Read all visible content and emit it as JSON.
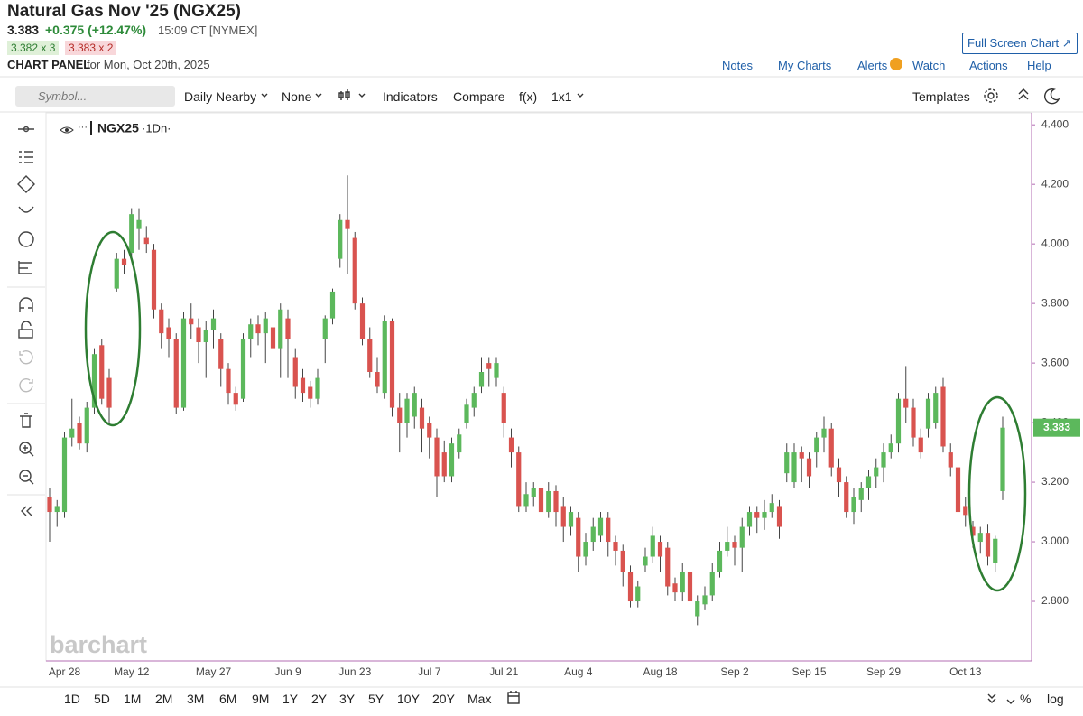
{
  "header": {
    "title": "Natural Gas Nov '25 (NGX25)",
    "last": "3.383",
    "change": "+0.375 (+12.47%)",
    "time": "15:09 CT [NYMEX]",
    "bid": "3.382 x 3",
    "ask": "3.383 x 2",
    "panel": "CHART PANEL",
    "date": "for Mon, Oct 20th, 2025",
    "fullscreen": "Full Screen Chart",
    "links": [
      "Notes",
      "My Charts",
      "Alerts",
      "Watch",
      "Actions",
      "Help"
    ]
  },
  "toolbar": {
    "search": "Symbol...",
    "items": [
      "Daily Nearby",
      "None",
      "Indicators",
      "Compare",
      "f(x)",
      "1x1"
    ],
    "templates": "Templates"
  },
  "legend": {
    "symbol": "NGX25",
    "period": "·1Dn·"
  },
  "watermark": "barchart",
  "periods": [
    "1D",
    "5D",
    "1M",
    "2M",
    "3M",
    "6M",
    "9M",
    "1Y",
    "2Y",
    "3Y",
    "5Y",
    "10Y",
    "20Y",
    "Max"
  ],
  "scale_buttons": [
    "%",
    "log"
  ],
  "chart_data": {
    "type": "candlestick",
    "up_color": "#5cb85c",
    "down_color": "#d9534f",
    "ylim": [
      2.6,
      4.44
    ],
    "yticks": [
      {
        "value": 2.8,
        "label": "2.800"
      },
      {
        "value": 3.0,
        "label": "3.000"
      },
      {
        "value": 3.2,
        "label": "3.200"
      },
      {
        "value": 3.4,
        "label": "3.400"
      },
      {
        "value": 3.6,
        "label": "3.600"
      },
      {
        "value": 3.8,
        "label": "3.800"
      },
      {
        "value": 4.0,
        "label": "4.000"
      },
      {
        "value": 4.2,
        "label": "4.200"
      },
      {
        "value": 4.4,
        "label": "4.400"
      }
    ],
    "categories": [
      null,
      null,
      "Apr 28",
      null,
      null,
      null,
      null,
      null,
      null,
      null,
      null,
      "May 12",
      null,
      null,
      null,
      null,
      null,
      null,
      null,
      null,
      null,
      null,
      "May 27",
      null,
      null,
      null,
      null,
      null,
      null,
      null,
      null,
      null,
      "Jun 9",
      null,
      null,
      null,
      null,
      null,
      null,
      null,
      null,
      "Jun 23",
      null,
      null,
      null,
      null,
      null,
      null,
      null,
      null,
      null,
      "Jul 7",
      null,
      null,
      null,
      null,
      null,
      null,
      null,
      null,
      null,
      "Jul 21",
      null,
      null,
      null,
      null,
      null,
      null,
      null,
      null,
      null,
      "Aug 4",
      null,
      null,
      null,
      null,
      null,
      null,
      null,
      null,
      null,
      null,
      "Aug 18",
      null,
      null,
      null,
      null,
      null,
      null,
      null,
      null,
      null,
      "Sep 2",
      null,
      null,
      null,
      null,
      null,
      null,
      null,
      null,
      null,
      "Sep 15",
      null,
      null,
      null,
      null,
      null,
      null,
      null,
      null,
      null,
      "Sep 29",
      null,
      null,
      null,
      null,
      null,
      null,
      null,
      null,
      null,
      null,
      "Oct 13",
      null,
      null,
      null,
      null,
      null
    ],
    "open": [
      3.15,
      3.1,
      3.1,
      3.35,
      3.4,
      3.33,
      3.45,
      3.66,
      3.55,
      3.85,
      3.95,
      3.97,
      4.05,
      4.02,
      3.98,
      3.78,
      3.72,
      3.68,
      3.45,
      3.75,
      3.72,
      3.67,
      3.71,
      3.68,
      3.58,
      3.5,
      3.48,
      3.68,
      3.73,
      3.7,
      3.72,
      3.65,
      3.75,
      3.62,
      3.55,
      3.52,
      3.48,
      3.68,
      3.75,
      3.95,
      4.08,
      4.02,
      3.8,
      3.68,
      3.57,
      3.5,
      3.74,
      3.45,
      3.4,
      3.42,
      3.45,
      3.4,
      3.35,
      3.3,
      3.22,
      3.3,
      3.4,
      3.45,
      3.52,
      3.6,
      3.55,
      3.5,
      3.35,
      3.3,
      3.12,
      3.15,
      3.18,
      3.1,
      3.17,
      3.12,
      3.05,
      3.08,
      2.95,
      3.0,
      3.02,
      3.08,
      3.0,
      2.97,
      2.9,
      2.8,
      2.92,
      2.95,
      3.0,
      2.98,
      2.86,
      2.83,
      2.9,
      2.75,
      2.79,
      2.82,
      2.9,
      2.97,
      3.0,
      2.98,
      3.05,
      3.1,
      3.08,
      3.1,
      3.12,
      3.23,
      3.2,
      3.3,
      3.28,
      3.3,
      3.35,
      3.38,
      3.25,
      3.2,
      3.1,
      3.14,
      3.18,
      3.22,
      3.25,
      3.3,
      3.33,
      3.48,
      3.45,
      3.35,
      3.38,
      3.4,
      3.52,
      3.3,
      3.25,
      3.12,
      3.05,
      3.0,
      3.03,
      2.93,
      3.17
    ],
    "high": [
      3.18,
      3.14,
      3.37,
      3.48,
      3.42,
      3.47,
      3.65,
      3.68,
      3.58,
      3.97,
      3.98,
      4.12,
      4.12,
      4.06,
      4.0,
      3.8,
      3.75,
      3.7,
      3.77,
      3.8,
      3.75,
      3.74,
      3.78,
      3.7,
      3.6,
      3.52,
      3.7,
      3.75,
      3.76,
      3.77,
      3.75,
      3.8,
      3.78,
      3.65,
      3.58,
      3.54,
      3.58,
      3.76,
      3.85,
      4.1,
      4.23,
      4.04,
      3.82,
      3.72,
      3.62,
      3.76,
      3.75,
      3.5,
      3.5,
      3.52,
      3.48,
      3.42,
      3.38,
      3.34,
      3.35,
      3.38,
      3.48,
      3.52,
      3.62,
      3.62,
      3.62,
      3.52,
      3.38,
      3.32,
      3.2,
      3.2,
      3.2,
      3.2,
      3.19,
      3.15,
      3.12,
      3.1,
      3.03,
      3.08,
      3.1,
      3.1,
      3.02,
      2.99,
      2.92,
      2.87,
      2.98,
      3.05,
      3.02,
      3.0,
      2.88,
      2.93,
      2.92,
      2.82,
      2.85,
      2.93,
      3.0,
      3.05,
      3.02,
      3.08,
      3.12,
      3.12,
      3.14,
      3.16,
      3.14,
      3.33,
      3.33,
      3.32,
      3.3,
      3.37,
      3.42,
      3.4,
      3.28,
      3.22,
      3.18,
      3.2,
      3.24,
      3.28,
      3.33,
      3.36,
      3.5,
      3.59,
      3.48,
      3.38,
      3.5,
      3.52,
      3.55,
      3.33,
      3.28,
      3.15,
      3.07,
      3.05,
      3.06,
      3.02,
      3.42
    ],
    "low": [
      3.0,
      3.05,
      3.08,
      3.32,
      3.31,
      3.3,
      3.43,
      3.46,
      3.4,
      3.84,
      3.9,
      3.95,
      3.98,
      3.97,
      3.75,
      3.65,
      3.62,
      3.43,
      3.44,
      3.68,
      3.6,
      3.55,
      3.65,
      3.52,
      3.46,
      3.44,
      3.47,
      3.62,
      3.66,
      3.6,
      3.62,
      3.55,
      3.55,
      3.48,
      3.47,
      3.45,
      3.46,
      3.6,
      3.73,
      3.92,
      3.9,
      3.78,
      3.66,
      3.55,
      3.5,
      3.48,
      3.42,
      3.3,
      3.35,
      3.38,
      3.3,
      3.28,
      3.15,
      3.2,
      3.2,
      3.28,
      3.38,
      3.42,
      3.5,
      3.52,
      3.52,
      3.35,
      3.25,
      3.1,
      3.1,
      3.12,
      3.08,
      3.08,
      3.05,
      3.0,
      3.02,
      2.9,
      2.92,
      2.97,
      3.0,
      2.95,
      2.92,
      2.85,
      2.78,
      2.78,
      2.9,
      2.93,
      2.9,
      2.82,
      2.8,
      2.8,
      2.78,
      2.72,
      2.77,
      2.8,
      2.88,
      2.95,
      2.92,
      2.9,
      3.02,
      3.03,
      3.04,
      3.08,
      3.01,
      3.2,
      3.18,
      3.2,
      3.18,
      3.25,
      3.3,
      3.22,
      3.15,
      3.08,
      3.06,
      3.1,
      3.14,
      3.18,
      3.2,
      3.28,
      3.3,
      3.4,
      3.32,
      3.28,
      3.35,
      3.38,
      3.3,
      3.22,
      3.08,
      3.05,
      2.98,
      2.96,
      2.92,
      2.9,
      3.14
    ],
    "close": [
      3.1,
      3.12,
      3.35,
      3.38,
      3.33,
      3.45,
      3.63,
      3.48,
      3.45,
      3.95,
      3.93,
      4.1,
      4.08,
      4.0,
      3.78,
      3.7,
      3.68,
      3.45,
      3.75,
      3.73,
      3.67,
      3.71,
      3.75,
      3.58,
      3.5,
      3.46,
      3.68,
      3.73,
      3.7,
      3.75,
      3.65,
      3.78,
      3.68,
      3.52,
      3.5,
      3.48,
      3.55,
      3.75,
      3.84,
      4.08,
      4.05,
      3.8,
      3.68,
      3.57,
      3.52,
      3.74,
      3.45,
      3.4,
      3.48,
      3.5,
      3.38,
      3.35,
      3.22,
      3.22,
      3.33,
      3.36,
      3.46,
      3.5,
      3.57,
      3.58,
      3.6,
      3.4,
      3.3,
      3.12,
      3.16,
      3.18,
      3.1,
      3.17,
      3.1,
      3.05,
      3.1,
      2.95,
      3.0,
      3.05,
      3.08,
      3.0,
      2.97,
      2.9,
      2.8,
      2.85,
      2.95,
      3.02,
      2.95,
      2.85,
      2.83,
      2.9,
      2.8,
      2.8,
      2.82,
      2.9,
      2.97,
      3.0,
      2.98,
      3.05,
      3.1,
      3.08,
      3.1,
      3.13,
      3.05,
      3.3,
      3.3,
      3.28,
      3.22,
      3.35,
      3.38,
      3.25,
      3.2,
      3.1,
      3.15,
      3.18,
      3.22,
      3.25,
      3.3,
      3.33,
      3.48,
      3.45,
      3.35,
      3.3,
      3.48,
      3.5,
      3.32,
      3.25,
      3.1,
      3.09,
      3.02,
      3.03,
      2.95,
      3.01,
      3.383
    ]
  }
}
